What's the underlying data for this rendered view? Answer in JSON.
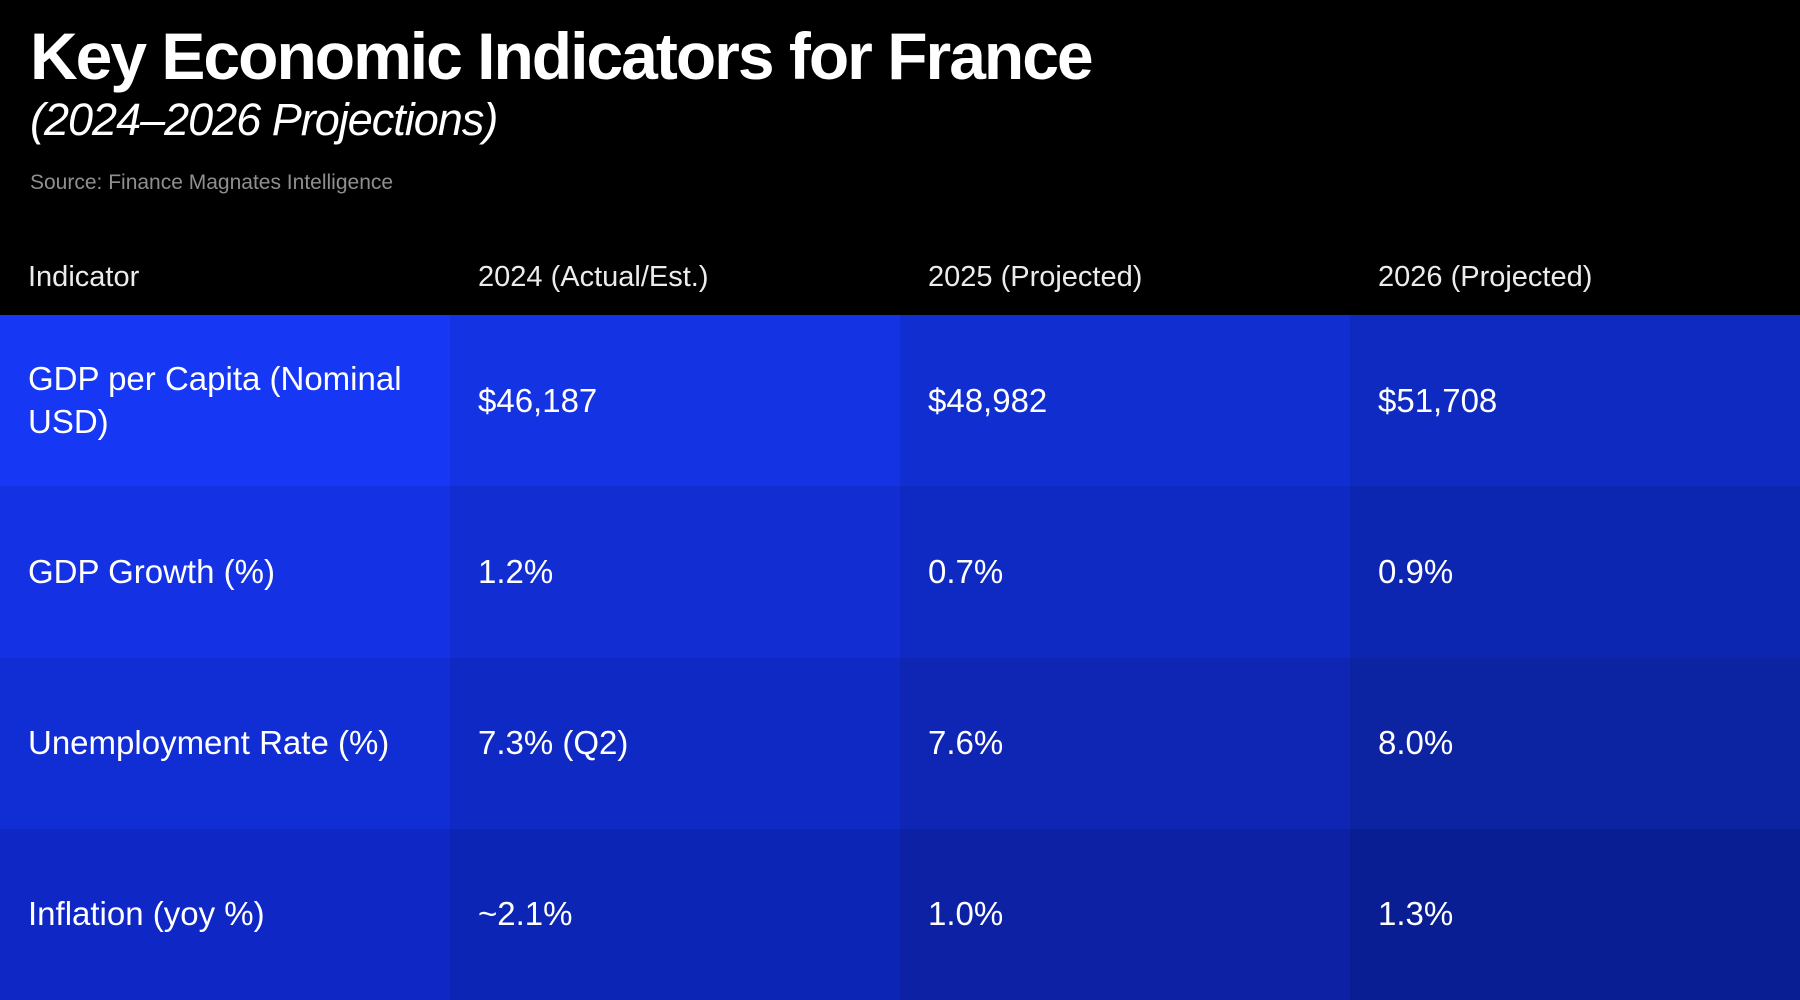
{
  "header": {
    "title": "Key Economic Indicators for France",
    "subtitle": "(2024–2026 Projections)",
    "source": "Source: Finance Magnates Intelligence"
  },
  "table": {
    "columns": [
      "Indicator",
      "2024 (Actual/Est.)",
      "2025 (Projected)",
      "2026 (Projected)"
    ],
    "rows": [
      {
        "label": "GDP per Capita (Nominal USD)",
        "values": [
          "$46,187",
          "$48,982",
          "$51,708"
        ]
      },
      {
        "label": "GDP Growth (%)",
        "values": [
          "1.2%",
          "0.7%",
          "0.9%"
        ]
      },
      {
        "label": "Unemployment Rate (%)",
        "values": [
          "7.3% (Q2)",
          "7.6%",
          "8.0%"
        ]
      },
      {
        "label": "Inflation (yoy %)",
        "values": [
          "~2.1%",
          "1.0%",
          "1.3%"
        ]
      }
    ],
    "cell_colors": [
      [
        "#1637f3",
        "#1433e2",
        "#112ed1",
        "#0f2ac0"
      ],
      [
        "#1432e4",
        "#122ed3",
        "#0f2ac2",
        "#0d26b1"
      ],
      [
        "#112dd4",
        "#0f29c4",
        "#0e26b3",
        "#0c23a2"
      ],
      [
        "#0f28c5",
        "#0d25b4",
        "#0c21a4",
        "#0a1e93"
      ]
    ]
  },
  "colors": {
    "background": "#000000",
    "title_text": "#ffffff",
    "source_text": "#8f8f8f",
    "column_header_text": "#ececec",
    "cell_text": "#ffffff"
  },
  "chart_data": {
    "type": "table",
    "title": "Key Economic Indicators for France",
    "subtitle": "(2024–2026 Projections)",
    "source": "Source: Finance Magnates Intelligence",
    "columns": [
      "Indicator",
      "2024 (Actual/Est.)",
      "2025 (Projected)",
      "2026 (Projected)"
    ],
    "rows": [
      {
        "indicator": "GDP per Capita (Nominal USD)",
        "y2024": "$46,187",
        "y2025": "$48,982",
        "y2026": "$51,708"
      },
      {
        "indicator": "GDP Growth (%)",
        "y2024": "1.2%",
        "y2025": "0.7%",
        "y2026": "0.9%"
      },
      {
        "indicator": "Unemployment Rate (%)",
        "y2024": "7.3% (Q2)",
        "y2025": "7.6%",
        "y2026": "8.0%"
      },
      {
        "indicator": "Inflation (yoy %)",
        "y2024": "~2.1%",
        "y2025": "1.0%",
        "y2026": "1.3%"
      }
    ],
    "layout_hints": {
      "cell_shading": "blue heatmap darkening toward bottom-right",
      "header_background": "#000000",
      "grid": "off"
    }
  }
}
